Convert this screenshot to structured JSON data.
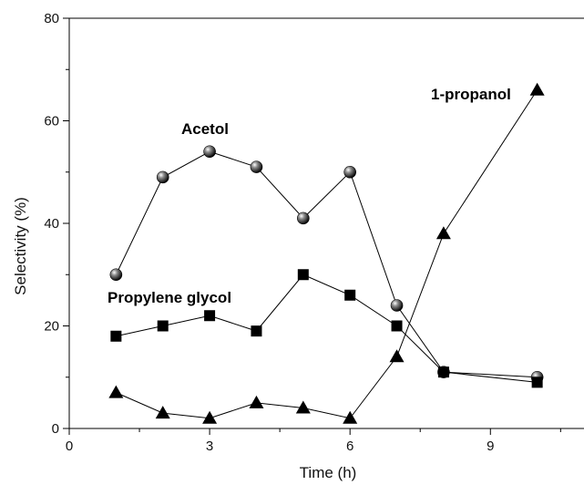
{
  "chart_data": {
    "type": "line",
    "title": "",
    "xlabel": "Time (h)",
    "ylabel": "Selectivity (%)",
    "xlim": [
      0,
      11
    ],
    "ylim": [
      0,
      80
    ],
    "xticks": [
      "0",
      "3",
      "6",
      "9"
    ],
    "yticks": [
      "0",
      "20",
      "40",
      "60",
      "80"
    ],
    "grid": false,
    "x": [
      1,
      2,
      3,
      4,
      5,
      6,
      7,
      8,
      10
    ],
    "series": [
      {
        "name": "Acetol",
        "marker": "sphere",
        "color": "#000000",
        "values": [
          30,
          49,
          54,
          51,
          41,
          50,
          24,
          11,
          10
        ]
      },
      {
        "name": "Propylene glycol",
        "marker": "square",
        "color": "#000000",
        "values": [
          18,
          20,
          22,
          19,
          30,
          26,
          20,
          11,
          9
        ]
      },
      {
        "name": "1-propanol",
        "marker": "triangle",
        "color": "#000000",
        "values": [
          7,
          3,
          2,
          5,
          4,
          2,
          14,
          38,
          66
        ]
      }
    ]
  }
}
